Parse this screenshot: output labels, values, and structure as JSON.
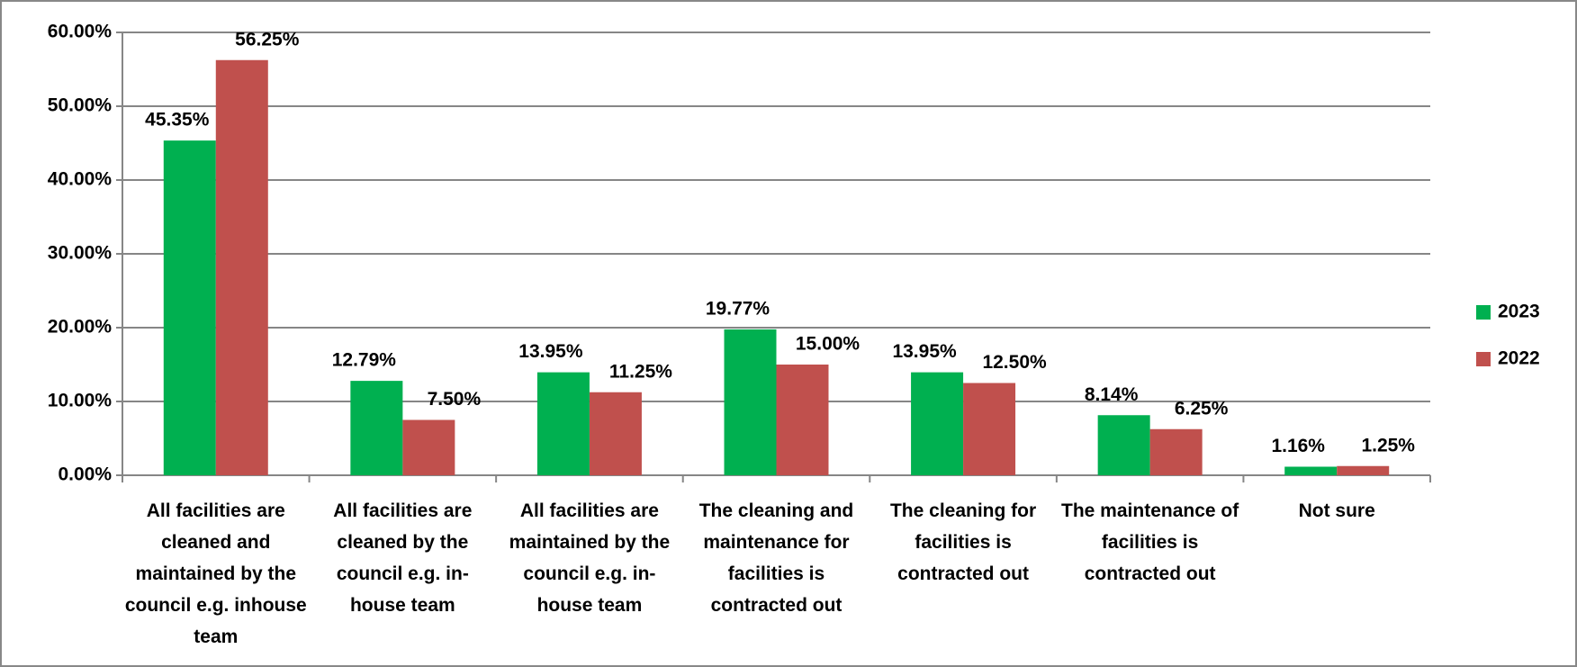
{
  "chart_data": {
    "type": "bar",
    "categories": [
      "All facilities are cleaned and maintained by the council e.g. inhouse team",
      "All facilities are cleaned by the council e.g. in-house team",
      "All facilities are maintained by the council e.g. in-house team",
      "The cleaning and maintenance for facilities is contracted out",
      "The cleaning for facilities is contracted out",
      "The maintenance of facilities is contracted out",
      "Not sure"
    ],
    "series": [
      {
        "name": "2023",
        "color": "#00b050",
        "values": [
          45.35,
          12.79,
          13.95,
          19.77,
          13.95,
          8.14,
          1.16
        ],
        "value_labels": [
          "45.35%",
          "12.79%",
          "13.95%",
          "19.77%",
          "13.95%",
          "8.14%",
          "1.16%"
        ]
      },
      {
        "name": "2022",
        "color": "#c0504d",
        "values": [
          56.25,
          7.5,
          11.25,
          15.0,
          12.5,
          6.25,
          1.25
        ],
        "value_labels": [
          "56.25%",
          "7.50%",
          "11.25%",
          "15.00%",
          "12.50%",
          "6.25%",
          "1.25%"
        ]
      }
    ],
    "ylim": [
      0,
      60
    ],
    "yticks": [
      {
        "value": 0,
        "label": "0.00%"
      },
      {
        "value": 10,
        "label": "10.00%"
      },
      {
        "value": 20,
        "label": "20.00%"
      },
      {
        "value": 30,
        "label": "30.00%"
      },
      {
        "value": 40,
        "label": "40.00%"
      },
      {
        "value": 50,
        "label": "50.00%"
      },
      {
        "value": 60,
        "label": "60.00%"
      }
    ],
    "grid": true,
    "legend": "right"
  }
}
